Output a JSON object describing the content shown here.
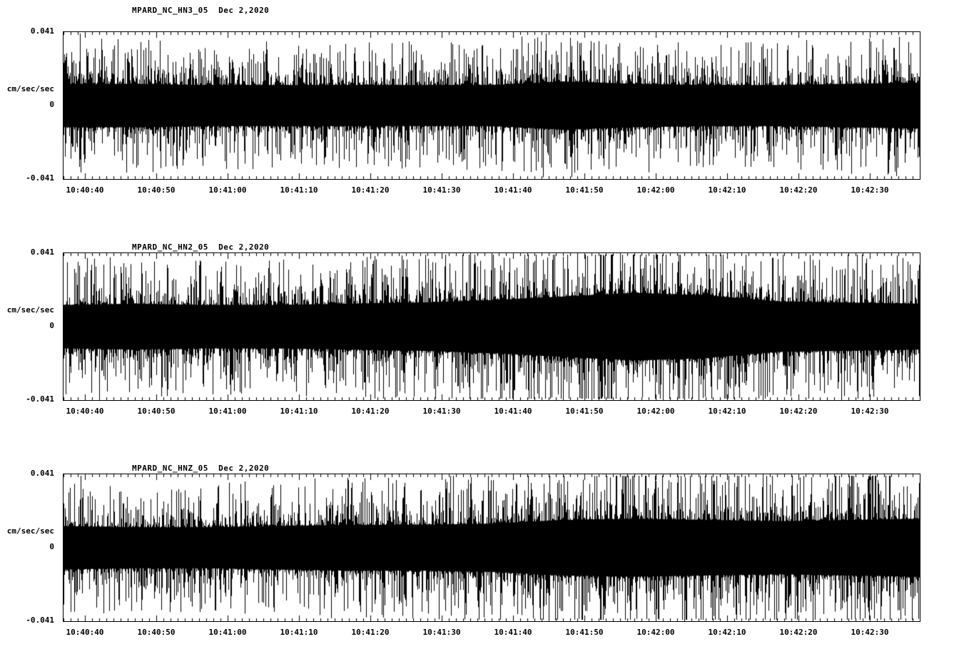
{
  "page": {
    "background": "#ffffff",
    "foreground": "#000000",
    "description": "Three stacked seismic acceleration waveform traces for station MPARD (NC network), channels HN3, HN2, HNZ"
  },
  "chart_data": [
    {
      "type": "line",
      "title": "MPARD_NC_HN3_05  Dec 2,2020",
      "station_channel": "MPARD_NC_HN3_05",
      "date": "Dec 2,2020",
      "ylabel": "cm/sec/sec",
      "xlabel": "",
      "ylim": [
        -0.041,
        0.041
      ],
      "ytick_labels": [
        "0.041",
        "0",
        "-0.041"
      ],
      "xtick_labels": [
        "10:40:40",
        "10:40:50",
        "10:41:00",
        "10:41:10",
        "10:41:20",
        "10:41:30",
        "10:41:40",
        "10:41:50",
        "10:42:00",
        "10:42:10",
        "10:42:20",
        "10:42:30"
      ],
      "x_tick_interval_sec": 10,
      "grid": false,
      "legend": "none",
      "series_description": "continuous broadband ground-acceleration noise, dense black trace centered on zero",
      "envelope_cm_s2": [
        0.018,
        0.018,
        0.017,
        0.017,
        0.017,
        0.017,
        0.017,
        0.02,
        0.018,
        0.017,
        0.017,
        0.018,
        0.019
      ]
    },
    {
      "type": "line",
      "title": "MPARD_NC_HN2_05  Dec 2,2020",
      "station_channel": "MPARD_NC_HN2_05",
      "date": "Dec 2,2020",
      "ylabel": "cm/sec/sec",
      "xlabel": "",
      "ylim": [
        -0.041,
        0.041
      ],
      "ytick_labels": [
        "0.041",
        "0",
        "-0.041"
      ],
      "xtick_labels": [
        "10:40:40",
        "10:40:50",
        "10:41:00",
        "10:41:10",
        "10:41:20",
        "10:41:30",
        "10:41:40",
        "10:41:50",
        "10:42:00",
        "10:42:10",
        "10:42:20",
        "10:42:30"
      ],
      "x_tick_interval_sec": 10,
      "grid": false,
      "legend": "none",
      "series_description": "continuous broadband ground-acceleration noise, amplitude swells toward 10:41:50-10:42:05 then decays",
      "envelope_cm_s2": [
        0.018,
        0.019,
        0.018,
        0.018,
        0.019,
        0.02,
        0.022,
        0.025,
        0.028,
        0.026,
        0.021,
        0.02,
        0.019
      ]
    },
    {
      "type": "line",
      "title": "MPARD_NC_HNZ_05  Dec 2,2020",
      "station_channel": "MPARD_NC_HNZ_05",
      "date": "Dec 2,2020",
      "ylabel": "cm/sec/sec",
      "xlabel": "",
      "ylim": [
        -0.041,
        0.041
      ],
      "ytick_labels": [
        "0.041",
        "0",
        "-0.041"
      ],
      "xtick_labels": [
        "10:40:40",
        "10:40:50",
        "10:41:00",
        "10:41:10",
        "10:41:20",
        "10:41:30",
        "10:41:40",
        "10:41:50",
        "10:42:00",
        "10:42:10",
        "10:42:20",
        "10:42:30"
      ],
      "x_tick_interval_sec": 10,
      "grid": false,
      "legend": "none",
      "series_description": "continuous broadband ground-acceleration noise, amplitude slightly elevated in second half of window",
      "envelope_cm_s2": [
        0.018,
        0.017,
        0.017,
        0.018,
        0.019,
        0.019,
        0.02,
        0.023,
        0.024,
        0.023,
        0.022,
        0.023,
        0.024
      ]
    }
  ]
}
